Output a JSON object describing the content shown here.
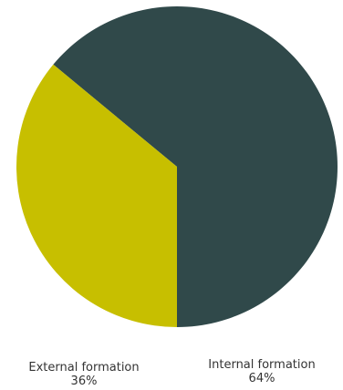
{
  "chart_data": {
    "type": "pie",
    "title": "",
    "slices": [
      {
        "label": "Internal formation",
        "value": 64,
        "value_label": "64%",
        "color": "#30494a"
      },
      {
        "label": "External formation",
        "value": 36,
        "value_label": "36%",
        "color": "#c7bf00"
      }
    ],
    "legend": "none"
  }
}
